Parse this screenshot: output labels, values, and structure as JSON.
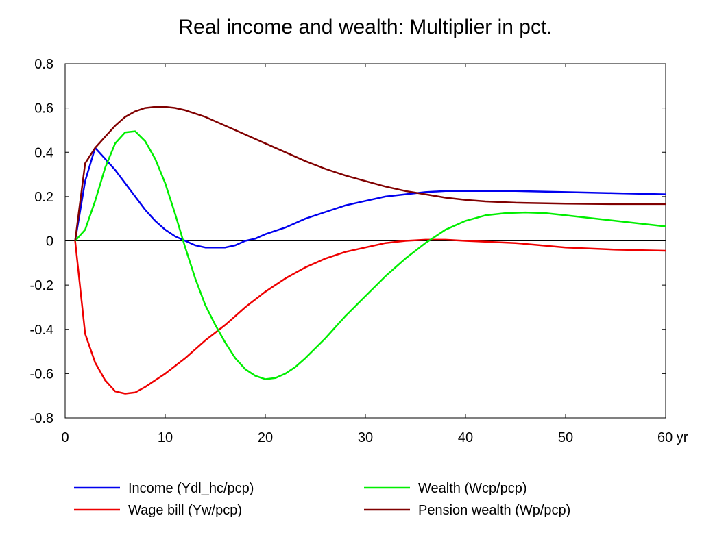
{
  "chart_data": {
    "type": "line",
    "title": "Real income and wealth: Multiplier in pct.",
    "xlabel": "",
    "ylabel": "",
    "x_unit": "yr",
    "xlim": [
      0,
      60
    ],
    "ylim": [
      -0.8,
      0.8
    ],
    "x_ticks": [
      0,
      10,
      20,
      30,
      40,
      50,
      60
    ],
    "x_tick_labels": [
      "0",
      "10",
      "20",
      "30",
      "40",
      "50",
      "60 yr"
    ],
    "y_ticks": [
      -0.8,
      -0.6,
      -0.4,
      -0.2,
      0,
      0.2,
      0.4,
      0.6,
      0.8
    ],
    "y_tick_labels": [
      "-0.8",
      "-0.6",
      "-0.4",
      "-0.2",
      "0",
      "0.2",
      "0.4",
      "0.6",
      "0.8"
    ],
    "grid": false,
    "zero_line": true,
    "legend_position": "bottom",
    "series": [
      {
        "name": "Income (Ydl_hc/pcp)",
        "color": "#0000ee",
        "points": [
          [
            1,
            0
          ],
          [
            2,
            0.27
          ],
          [
            3,
            0.42
          ],
          [
            4,
            0.37
          ],
          [
            5,
            0.32
          ],
          [
            6,
            0.26
          ],
          [
            7,
            0.2
          ],
          [
            8,
            0.14
          ],
          [
            9,
            0.09
          ],
          [
            10,
            0.05
          ],
          [
            11,
            0.02
          ],
          [
            12,
            0
          ],
          [
            13,
            -0.02
          ],
          [
            14,
            -0.03
          ],
          [
            15,
            -0.03
          ],
          [
            16,
            -0.03
          ],
          [
            17,
            -0.02
          ],
          [
            18,
            0
          ],
          [
            19,
            0.01
          ],
          [
            20,
            0.03
          ],
          [
            22,
            0.06
          ],
          [
            24,
            0.1
          ],
          [
            26,
            0.13
          ],
          [
            28,
            0.16
          ],
          [
            30,
            0.18
          ],
          [
            32,
            0.2
          ],
          [
            34,
            0.21
          ],
          [
            36,
            0.22
          ],
          [
            38,
            0.225
          ],
          [
            40,
            0.225
          ],
          [
            45,
            0.225
          ],
          [
            50,
            0.22
          ],
          [
            55,
            0.215
          ],
          [
            60,
            0.21
          ]
        ]
      },
      {
        "name": "Wage bill (Yw/pcp)",
        "color": "#ee0000",
        "points": [
          [
            1,
            0
          ],
          [
            2,
            -0.42
          ],
          [
            3,
            -0.55
          ],
          [
            4,
            -0.63
          ],
          [
            5,
            -0.68
          ],
          [
            6,
            -0.69
          ],
          [
            7,
            -0.685
          ],
          [
            8,
            -0.66
          ],
          [
            9,
            -0.63
          ],
          [
            10,
            -0.6
          ],
          [
            12,
            -0.53
          ],
          [
            14,
            -0.45
          ],
          [
            16,
            -0.38
          ],
          [
            18,
            -0.3
          ],
          [
            20,
            -0.23
          ],
          [
            22,
            -0.17
          ],
          [
            24,
            -0.12
          ],
          [
            26,
            -0.08
          ],
          [
            28,
            -0.05
          ],
          [
            30,
            -0.03
          ],
          [
            32,
            -0.01
          ],
          [
            34,
            0
          ],
          [
            36,
            0.005
          ],
          [
            38,
            0.005
          ],
          [
            40,
            0
          ],
          [
            45,
            -0.01
          ],
          [
            50,
            -0.03
          ],
          [
            55,
            -0.04
          ],
          [
            60,
            -0.045
          ]
        ]
      },
      {
        "name": "Wealth (Wcp/pcp)",
        "color": "#00ee00",
        "points": [
          [
            1,
            0
          ],
          [
            2,
            0.05
          ],
          [
            3,
            0.18
          ],
          [
            4,
            0.33
          ],
          [
            5,
            0.44
          ],
          [
            6,
            0.49
          ],
          [
            7,
            0.495
          ],
          [
            8,
            0.45
          ],
          [
            9,
            0.37
          ],
          [
            10,
            0.26
          ],
          [
            11,
            0.12
          ],
          [
            12,
            -0.03
          ],
          [
            13,
            -0.17
          ],
          [
            14,
            -0.29
          ],
          [
            15,
            -0.38
          ],
          [
            16,
            -0.46
          ],
          [
            17,
            -0.53
          ],
          [
            18,
            -0.58
          ],
          [
            19,
            -0.61
          ],
          [
            20,
            -0.625
          ],
          [
            21,
            -0.62
          ],
          [
            22,
            -0.6
          ],
          [
            23,
            -0.57
          ],
          [
            24,
            -0.53
          ],
          [
            26,
            -0.44
          ],
          [
            28,
            -0.34
          ],
          [
            30,
            -0.25
          ],
          [
            32,
            -0.16
          ],
          [
            34,
            -0.08
          ],
          [
            36,
            -0.01
          ],
          [
            38,
            0.05
          ],
          [
            40,
            0.09
          ],
          [
            42,
            0.115
          ],
          [
            44,
            0.125
          ],
          [
            46,
            0.128
          ],
          [
            48,
            0.125
          ],
          [
            50,
            0.115
          ],
          [
            55,
            0.09
          ],
          [
            60,
            0.065
          ]
        ]
      },
      {
        "name": "Pension wealth (Wp/pcp)",
        "color": "#800000",
        "points": [
          [
            1,
            0
          ],
          [
            2,
            0.35
          ],
          [
            3,
            0.42
          ],
          [
            4,
            0.47
          ],
          [
            5,
            0.52
          ],
          [
            6,
            0.56
          ],
          [
            7,
            0.585
          ],
          [
            8,
            0.6
          ],
          [
            9,
            0.605
          ],
          [
            10,
            0.605
          ],
          [
            11,
            0.6
          ],
          [
            12,
            0.59
          ],
          [
            14,
            0.56
          ],
          [
            16,
            0.52
          ],
          [
            18,
            0.48
          ],
          [
            20,
            0.44
          ],
          [
            22,
            0.4
          ],
          [
            24,
            0.36
          ],
          [
            26,
            0.325
          ],
          [
            28,
            0.295
          ],
          [
            30,
            0.27
          ],
          [
            32,
            0.245
          ],
          [
            34,
            0.225
          ],
          [
            36,
            0.21
          ],
          [
            38,
            0.195
          ],
          [
            40,
            0.185
          ],
          [
            42,
            0.178
          ],
          [
            45,
            0.172
          ],
          [
            50,
            0.168
          ],
          [
            55,
            0.166
          ],
          [
            60,
            0.166
          ]
        ]
      }
    ]
  }
}
